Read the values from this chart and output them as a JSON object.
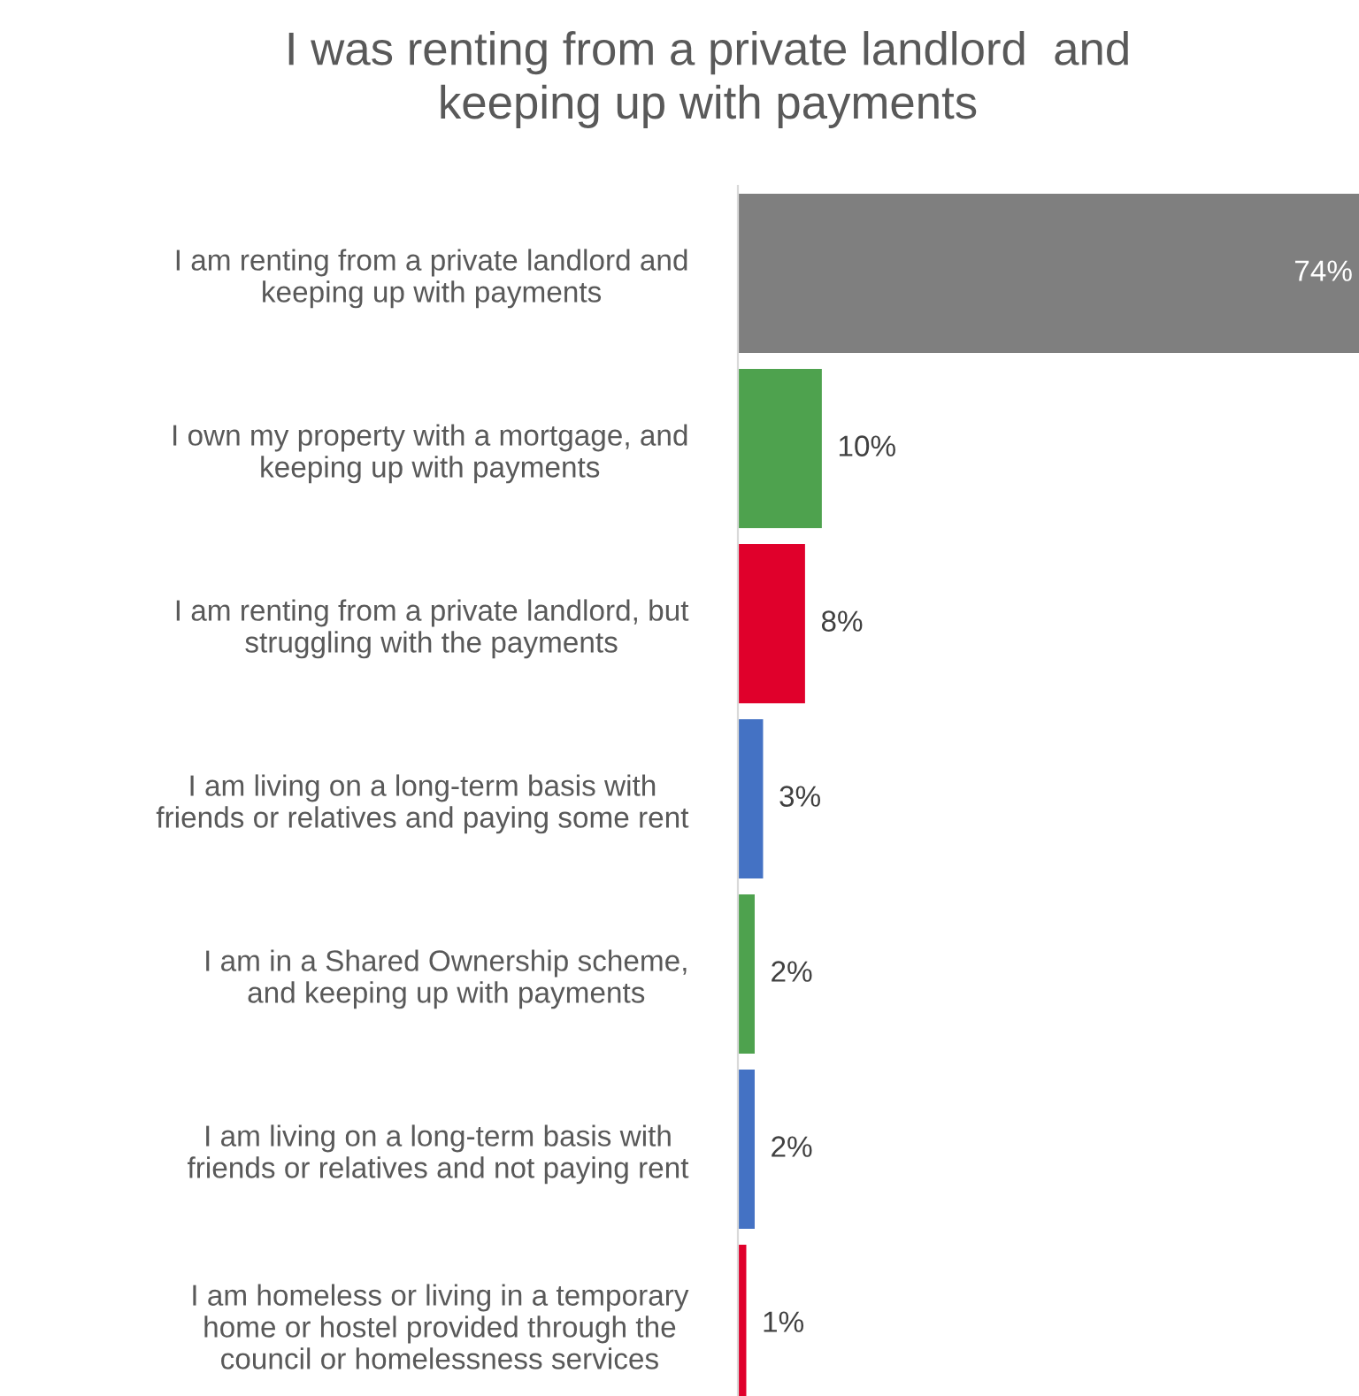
{
  "chart_data": {
    "type": "bar",
    "orientation": "horizontal",
    "title": "I was renting from a private landlord  and\nkeeping up with payments",
    "categories": [
      "I am renting from a private landlord and\nkeeping up with payments",
      "I own my property with a mortgage, and\nkeeping up with payments",
      "I am renting from a private landlord, but\nstruggling with the payments",
      "I am living on a long-term basis with\nfriends or relatives and paying some rent",
      "I am in a Shared Ownership scheme,\nand keeping up with payments",
      "I am living on a long-term basis with\nfriends or relatives and not paying rent",
      "I am homeless or living in a temporary\nhome or hostel provided through the\ncouncil or homelessness services"
    ],
    "values": [
      74,
      10,
      8,
      3,
      2,
      2,
      1
    ],
    "colors": [
      "#7f7f7f",
      "#4ea24e",
      "#e0002b",
      "#4472c4",
      "#4ea24e",
      "#4472c4",
      "#e0002b"
    ],
    "value_labels": [
      "74%",
      "10%",
      "8%",
      "3%",
      "2%",
      "2%",
      "1%"
    ],
    "grid": false,
    "legend": false
  }
}
